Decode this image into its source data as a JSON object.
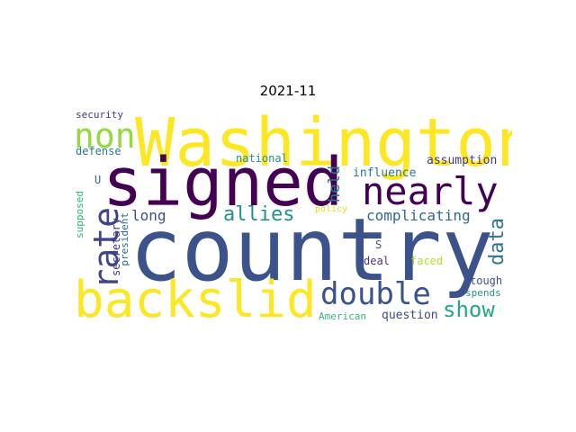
{
  "title": "2021-11",
  "words": {
    "country": {
      "text": "country",
      "color": "#3b528b"
    },
    "washington": {
      "text": "Washington",
      "color": "#fde725"
    },
    "signed": {
      "text": "signed",
      "color": "#440154"
    },
    "backslid": {
      "text": "backslid",
      "color": "#fde725"
    },
    "nearly": {
      "text": "nearly",
      "color": "#440154"
    },
    "double": {
      "text": "double",
      "color": "#3b528b"
    },
    "non": {
      "text": "non",
      "color": "#95d840"
    },
    "rate": {
      "text": "rate",
      "color": "#414487"
    },
    "allies": {
      "text": "allies",
      "color": "#21918c"
    },
    "data": {
      "text": "data",
      "color": "#2a788e"
    },
    "show": {
      "text": "show",
      "color": "#22a884"
    },
    "complicating": {
      "text": "complicating",
      "color": "#31688e"
    },
    "long": {
      "text": "long",
      "color": "#3b528b"
    },
    "held": {
      "text": "held",
      "color": "#2a788e"
    },
    "assumption": {
      "text": "assumption",
      "color": "#443983"
    },
    "influence": {
      "text": "influence",
      "color": "#2a788e"
    },
    "national": {
      "text": "national",
      "color": "#21918c"
    },
    "security": {
      "text": "security",
      "color": "#443983"
    },
    "defense": {
      "text": "defense",
      "color": "#2a788e"
    },
    "supposed": {
      "text": "supposed",
      "color": "#35b779"
    },
    "secretary": {
      "text": "secretary",
      "color": "#443983"
    },
    "president": {
      "text": "president",
      "color": "#31688e"
    },
    "u": {
      "text": "U",
      "color": "#31688e"
    },
    "s": {
      "text": "S",
      "color": "#3b528b"
    },
    "policy": {
      "text": "policy",
      "color": "#dde318"
    },
    "deal": {
      "text": "deal",
      "color": "#443983"
    },
    "faced": {
      "text": "faced",
      "color": "#b5de2b"
    },
    "tough": {
      "text": "tough",
      "color": "#3b528b"
    },
    "spends": {
      "text": "spends",
      "color": "#21918c"
    },
    "american": {
      "text": "American",
      "color": "#35b779"
    },
    "question": {
      "text": "question",
      "color": "#3e4a89"
    }
  }
}
